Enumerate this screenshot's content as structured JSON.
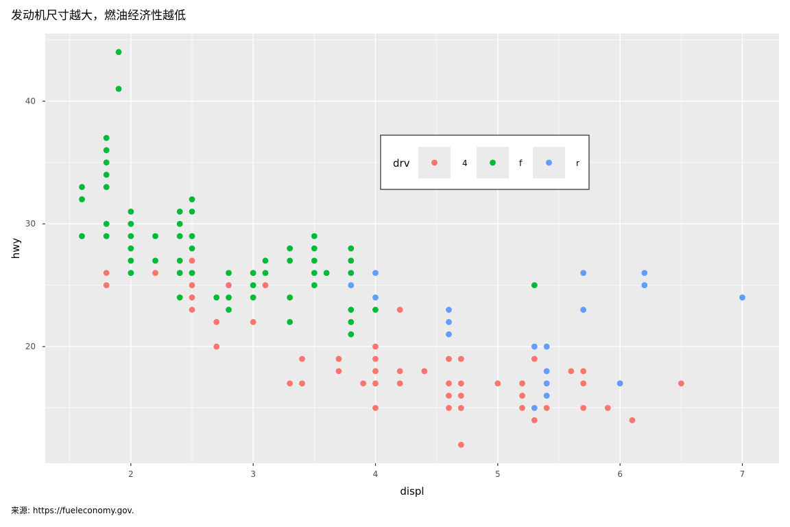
{
  "chart_data": {
    "type": "scatter",
    "title": "发动机尺寸越大，燃油经济性越低",
    "caption": "来源: https://fueleconomy.gov.",
    "xlabel": "displ",
    "ylabel": "hwy",
    "xlim": [
      1.3,
      7.3
    ],
    "ylim": [
      10.5,
      45.5
    ],
    "x_ticks": [
      2,
      3,
      4,
      5,
      6,
      7
    ],
    "y_ticks": [
      20,
      30,
      40
    ],
    "x_minor_ticks": [
      1.5,
      2.5,
      3.5,
      4.5,
      5.5,
      6.5
    ],
    "y_minor_ticks": [
      15,
      25,
      35,
      45
    ],
    "grid": true,
    "legend": {
      "title": "drv",
      "placement": "inside-top-center",
      "entries": [
        "4",
        "f",
        "r"
      ]
    },
    "colors": {
      "4": "#F8766D",
      "f": "#00BA38",
      "r": "#619CFF",
      "panel_bg": "#EBEBEB",
      "grid": "#FFFFFF"
    },
    "series": [
      {
        "name": "4",
        "points": [
          [
            1.8,
            26
          ],
          [
            1.8,
            25
          ],
          [
            2.2,
            26
          ],
          [
            2.5,
            27
          ],
          [
            2.5,
            26
          ],
          [
            2.5,
            25
          ],
          [
            2.5,
            24
          ],
          [
            2.5,
            23
          ],
          [
            2.7,
            22
          ],
          [
            2.7,
            20
          ],
          [
            2.8,
            25
          ],
          [
            3.0,
            22
          ],
          [
            3.1,
            25
          ],
          [
            3.3,
            17
          ],
          [
            3.4,
            19
          ],
          [
            3.4,
            17
          ],
          [
            3.7,
            19
          ],
          [
            3.7,
            18
          ],
          [
            3.9,
            17
          ],
          [
            4.0,
            20
          ],
          [
            4.0,
            19
          ],
          [
            4.0,
            18
          ],
          [
            4.0,
            17
          ],
          [
            4.0,
            15
          ],
          [
            4.2,
            23
          ],
          [
            4.2,
            18
          ],
          [
            4.2,
            17
          ],
          [
            4.4,
            18
          ],
          [
            4.6,
            19
          ],
          [
            4.6,
            17
          ],
          [
            4.6,
            16
          ],
          [
            4.6,
            15
          ],
          [
            4.7,
            19
          ],
          [
            4.7,
            17
          ],
          [
            4.7,
            16
          ],
          [
            4.7,
            15
          ],
          [
            4.7,
            12
          ],
          [
            5.0,
            17
          ],
          [
            5.2,
            17
          ],
          [
            5.2,
            16
          ],
          [
            5.2,
            15
          ],
          [
            5.3,
            19
          ],
          [
            5.3,
            14
          ],
          [
            5.4,
            15
          ],
          [
            5.6,
            18
          ],
          [
            5.7,
            18
          ],
          [
            5.7,
            17
          ],
          [
            5.7,
            15
          ],
          [
            5.9,
            15
          ],
          [
            6.1,
            14
          ],
          [
            6.5,
            17
          ]
        ]
      },
      {
        "name": "f",
        "points": [
          [
            1.6,
            33
          ],
          [
            1.6,
            32
          ],
          [
            1.6,
            29
          ],
          [
            1.8,
            37
          ],
          [
            1.8,
            36
          ],
          [
            1.8,
            35
          ],
          [
            1.8,
            34
          ],
          [
            1.8,
            33
          ],
          [
            1.8,
            30
          ],
          [
            1.8,
            29
          ],
          [
            1.9,
            44
          ],
          [
            1.9,
            41
          ],
          [
            2.0,
            31
          ],
          [
            2.0,
            30
          ],
          [
            2.0,
            29
          ],
          [
            2.0,
            28
          ],
          [
            2.0,
            27
          ],
          [
            2.0,
            26
          ],
          [
            2.2,
            29
          ],
          [
            2.2,
            27
          ],
          [
            2.4,
            31
          ],
          [
            2.4,
            30
          ],
          [
            2.4,
            29
          ],
          [
            2.4,
            27
          ],
          [
            2.4,
            26
          ],
          [
            2.4,
            24
          ],
          [
            2.5,
            32
          ],
          [
            2.5,
            31
          ],
          [
            2.5,
            29
          ],
          [
            2.5,
            28
          ],
          [
            2.5,
            26
          ],
          [
            2.7,
            24
          ],
          [
            2.8,
            26
          ],
          [
            2.8,
            24
          ],
          [
            2.8,
            23
          ],
          [
            3.0,
            26
          ],
          [
            3.0,
            25
          ],
          [
            3.0,
            24
          ],
          [
            3.1,
            27
          ],
          [
            3.1,
            26
          ],
          [
            3.3,
            28
          ],
          [
            3.3,
            27
          ],
          [
            3.3,
            24
          ],
          [
            3.3,
            22
          ],
          [
            3.5,
            29
          ],
          [
            3.5,
            28
          ],
          [
            3.5,
            27
          ],
          [
            3.5,
            26
          ],
          [
            3.5,
            25
          ],
          [
            3.6,
            26
          ],
          [
            3.8,
            28
          ],
          [
            3.8,
            27
          ],
          [
            3.8,
            26
          ],
          [
            3.8,
            23
          ],
          [
            3.8,
            22
          ],
          [
            3.8,
            21
          ],
          [
            4.0,
            23
          ],
          [
            5.3,
            25
          ]
        ]
      },
      {
        "name": "r",
        "points": [
          [
            3.8,
            25
          ],
          [
            4.0,
            26
          ],
          [
            4.0,
            24
          ],
          [
            4.6,
            23
          ],
          [
            4.6,
            22
          ],
          [
            4.6,
            21
          ],
          [
            5.3,
            20
          ],
          [
            5.3,
            15
          ],
          [
            5.4,
            20
          ],
          [
            5.4,
            18
          ],
          [
            5.4,
            17
          ],
          [
            5.4,
            16
          ],
          [
            5.7,
            26
          ],
          [
            5.7,
            23
          ],
          [
            6.0,
            17
          ],
          [
            6.2,
            26
          ],
          [
            6.2,
            25
          ],
          [
            7.0,
            24
          ]
        ]
      }
    ]
  }
}
